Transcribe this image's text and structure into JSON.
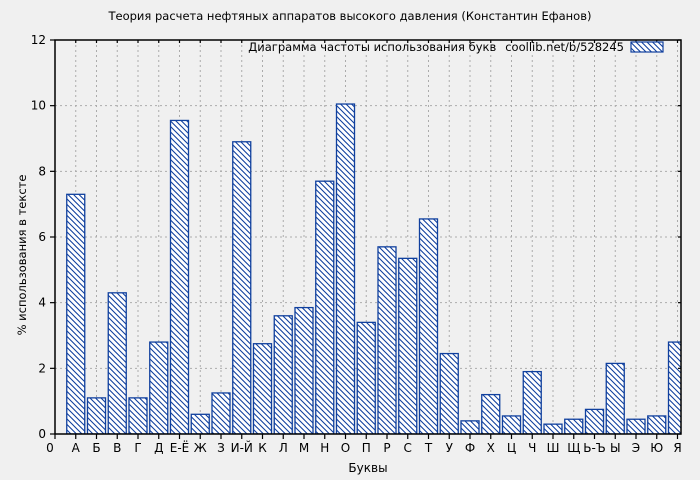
{
  "chart_data": {
    "type": "bar",
    "title": "Теория расчета нефтяных аппаратов высокого давления (Константин Ефанов)",
    "legend": {
      "label": "Диаграмма частоты использования букв",
      "url": "coollib.net/b/528245",
      "position": "top-right",
      "swatch": "blue-hatched-bar"
    },
    "xlabel": "Буквы",
    "ylabel": "% использования в тексте",
    "x_origin_label": "0",
    "categories": [
      "А",
      "Б",
      "В",
      "Г",
      "Д",
      "Е-Ё",
      "Ж",
      "З",
      "И-Й",
      "К",
      "Л",
      "М",
      "Н",
      "О",
      "П",
      "Р",
      "С",
      "Т",
      "У",
      "Ф",
      "Х",
      "Ц",
      "Ч",
      "Ш",
      "Щ",
      "Ь-Ъ",
      "Ы",
      "Э",
      "Ю",
      "Я"
    ],
    "values": [
      7.3,
      1.1,
      4.3,
      1.1,
      2.8,
      9.55,
      0.6,
      1.25,
      8.9,
      2.75,
      3.6,
      3.85,
      7.7,
      10.05,
      3.4,
      5.7,
      5.35,
      6.55,
      2.45,
      0.4,
      1.2,
      0.55,
      1.9,
      0.3,
      0.45,
      0.75,
      2.15,
      0.45,
      0.55,
      2.8
    ],
    "ylim": [
      0,
      12
    ],
    "yticks": [
      0,
      2,
      4,
      6,
      8,
      10,
      12
    ],
    "grid": true,
    "hatch_style": "backslash-diagonal",
    "colors": {
      "background": "#f0f0f0",
      "bar_fill": "#ffffff",
      "bar_edge": "#10409e",
      "hatch": "#10409e",
      "grid": "#ababab",
      "axis": "#000000",
      "text": "#000000"
    }
  }
}
